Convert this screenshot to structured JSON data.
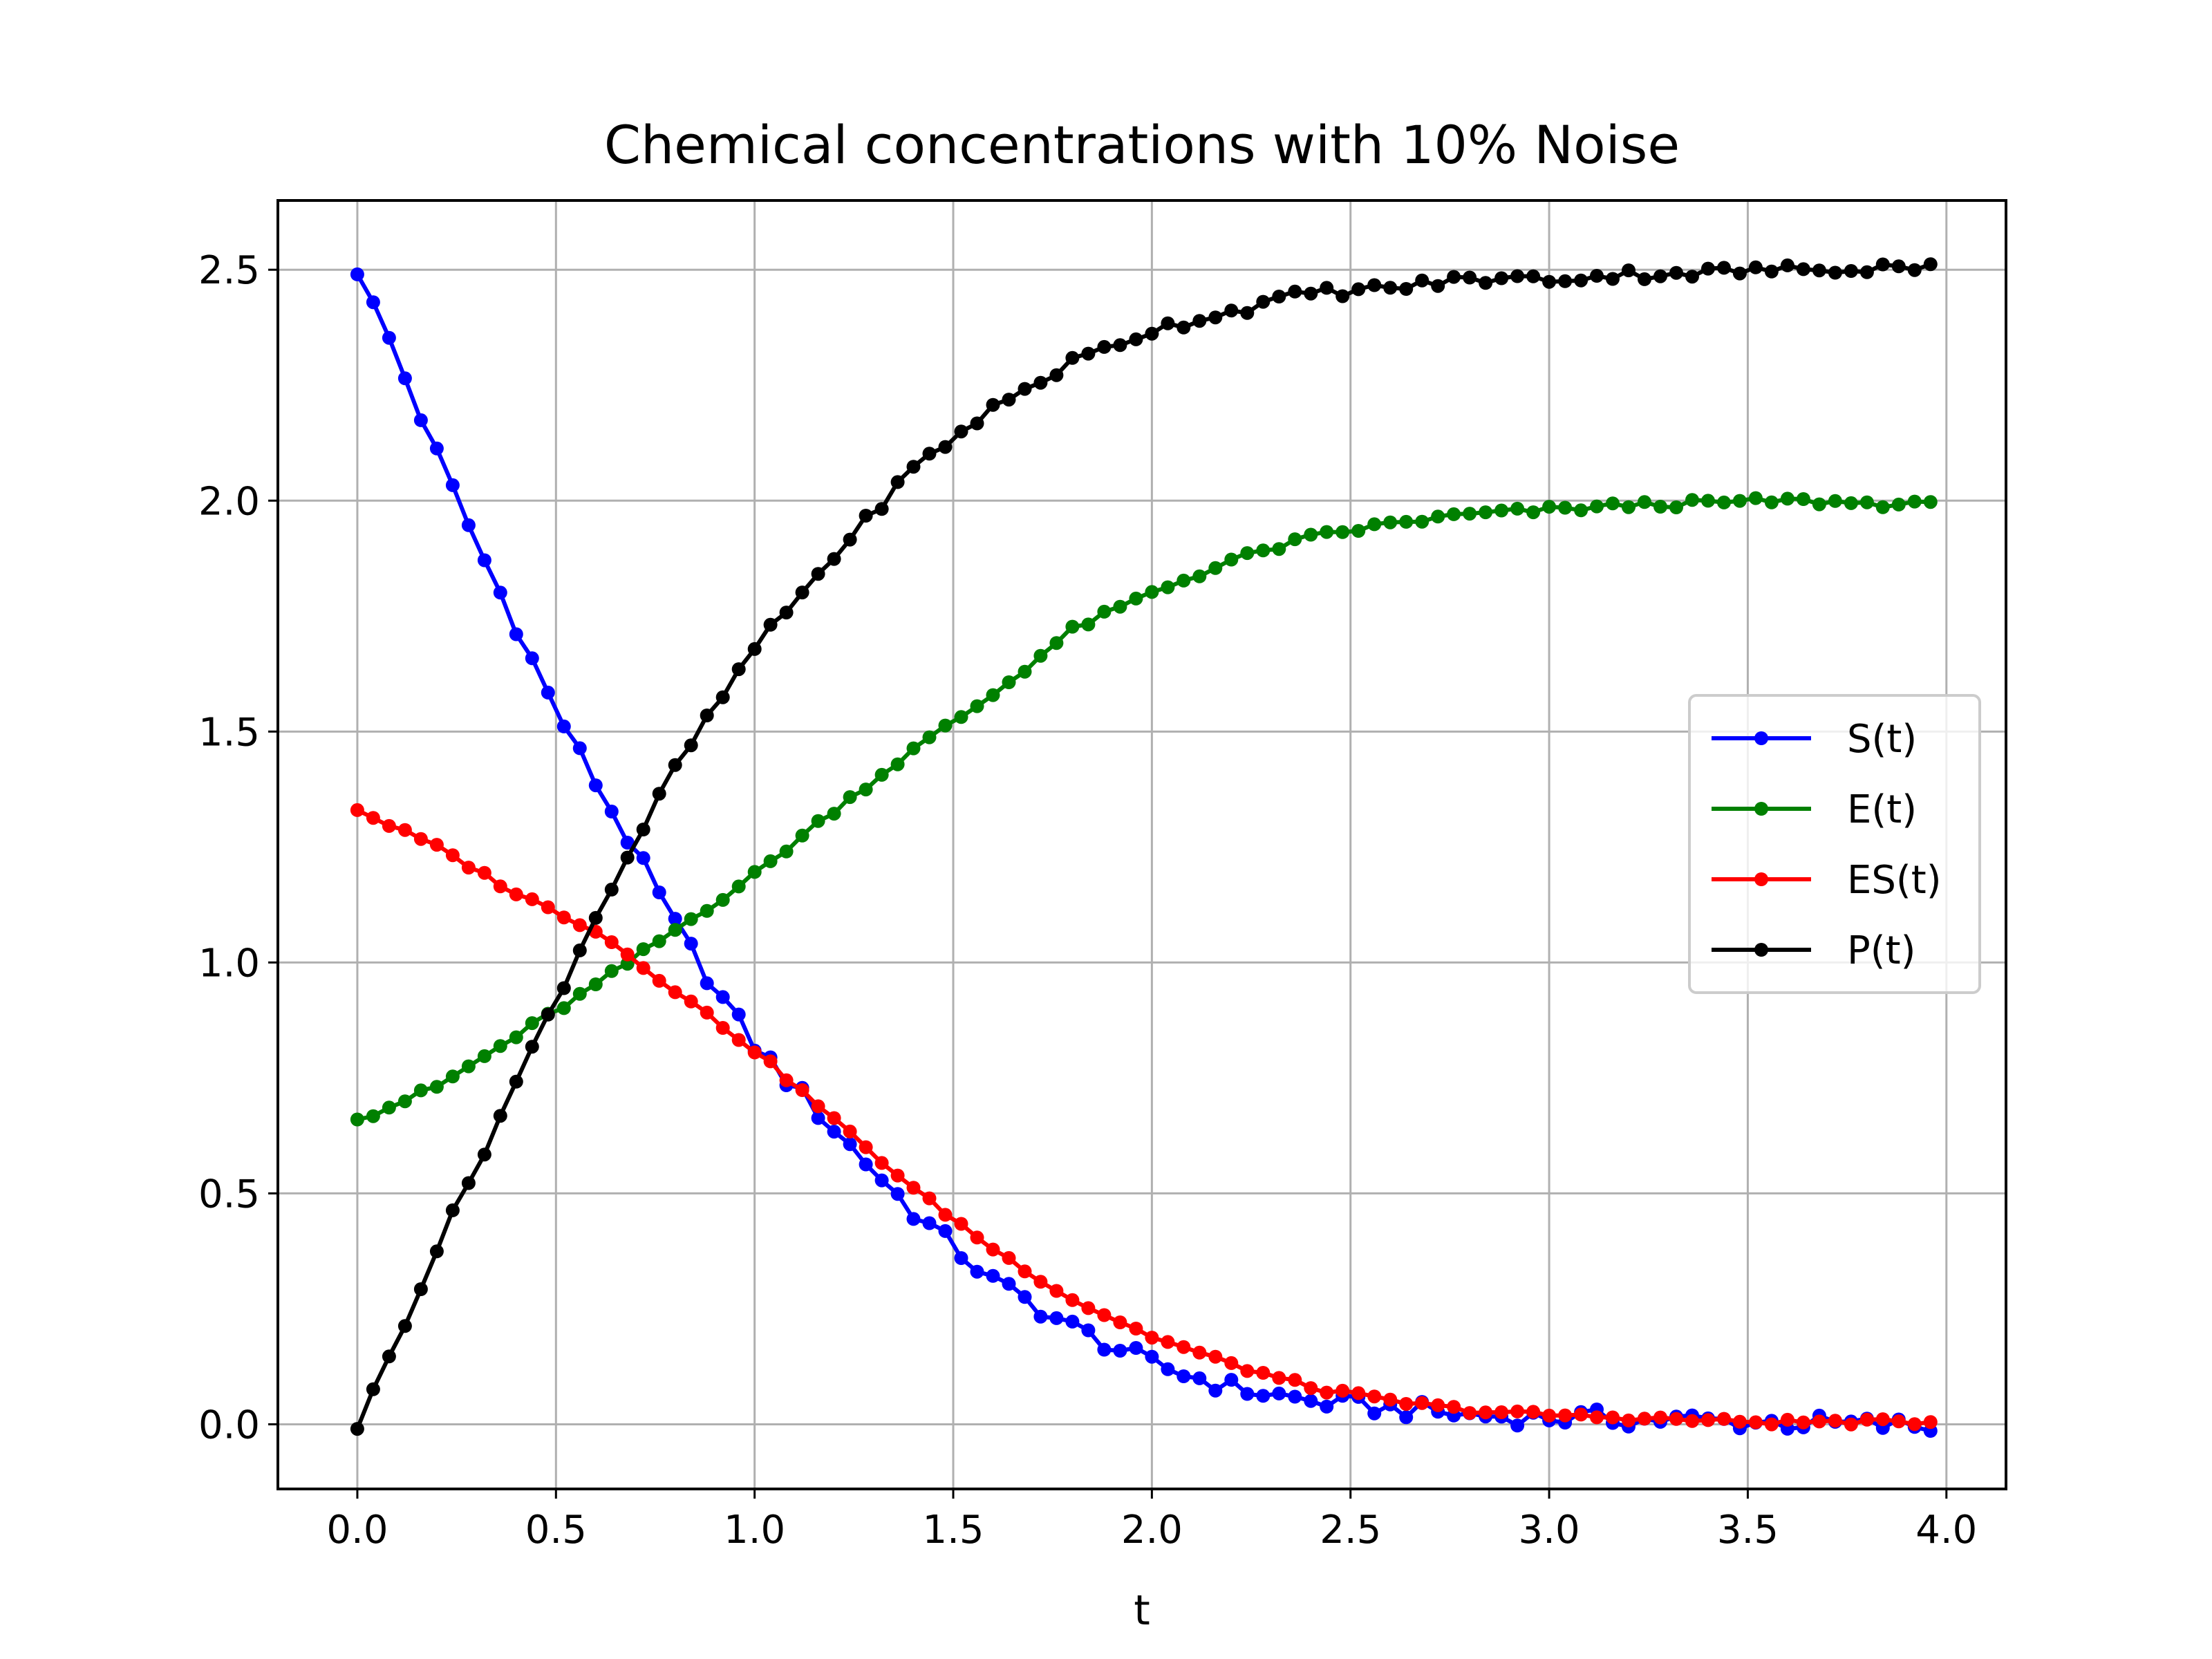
{
  "chart_data": {
    "type": "line",
    "title": "Chemical concentrations with 10% Noise",
    "xlabel": "t",
    "ylabel": "",
    "xlim": [
      -0.2,
      4.15
    ],
    "ylim": [
      -0.14,
      2.65
    ],
    "xticks": [
      0.0,
      0.5,
      1.0,
      1.5,
      2.0,
      2.5,
      3.0,
      3.5,
      4.0
    ],
    "yticks": [
      0.0,
      0.5,
      1.0,
      1.5,
      2.0,
      2.5
    ],
    "xtick_labels": [
      "0.0",
      "0.5",
      "1.0",
      "1.5",
      "2.0",
      "2.5",
      "3.0",
      "3.5",
      "4.0"
    ],
    "ytick_labels": [
      "0.0",
      "0.5",
      "1.0",
      "1.5",
      "2.0",
      "2.5"
    ],
    "grid": true,
    "legend_position": "center-right",
    "markers": true,
    "x_step": 0.04,
    "n_points": 100,
    "series": [
      {
        "name": "S(t)",
        "color": "#0000ff",
        "keypoints": [
          [
            0,
            2.49
          ],
          [
            0.08,
            2.35
          ],
          [
            0.2,
            2.1
          ],
          [
            0.32,
            1.87
          ],
          [
            0.4,
            1.73
          ],
          [
            0.48,
            1.58
          ],
          [
            0.56,
            1.45
          ],
          [
            0.68,
            1.27
          ],
          [
            0.8,
            1.08
          ],
          [
            0.92,
            0.92
          ],
          [
            1.0,
            0.82
          ],
          [
            1.2,
            0.64
          ],
          [
            1.4,
            0.46
          ],
          [
            1.6,
            0.31
          ],
          [
            1.8,
            0.21
          ],
          [
            2.0,
            0.13
          ],
          [
            2.2,
            0.08
          ],
          [
            2.4,
            0.05
          ],
          [
            2.6,
            0.035
          ],
          [
            2.8,
            0.02
          ],
          [
            3.0,
            0.015
          ],
          [
            3.4,
            0.008
          ],
          [
            3.96,
            -0.005
          ]
        ],
        "noise": 0.02
      },
      {
        "name": "E(t)",
        "color": "#008000",
        "keypoints": [
          [
            0,
            0.66
          ],
          [
            0.2,
            0.73
          ],
          [
            0.4,
            0.84
          ],
          [
            0.6,
            0.95
          ],
          [
            0.8,
            1.07
          ],
          [
            1.0,
            1.19
          ],
          [
            1.2,
            1.33
          ],
          [
            1.4,
            1.46
          ],
          [
            1.6,
            1.58
          ],
          [
            1.8,
            1.72
          ],
          [
            2.0,
            1.8
          ],
          [
            2.2,
            1.87
          ],
          [
            2.4,
            1.92
          ],
          [
            2.6,
            1.95
          ],
          [
            2.8,
            1.97
          ],
          [
            3.0,
            1.98
          ],
          [
            3.2,
            1.99
          ],
          [
            3.6,
            2.0
          ],
          [
            3.96,
            1.99
          ]
        ],
        "noise": 0.008
      },
      {
        "name": "ES(t)",
        "color": "#ff0000",
        "keypoints": [
          [
            0,
            1.33
          ],
          [
            0.2,
            1.25
          ],
          [
            0.4,
            1.15
          ],
          [
            0.6,
            1.07
          ],
          [
            0.8,
            0.94
          ],
          [
            1.0,
            0.81
          ],
          [
            1.2,
            0.66
          ],
          [
            1.4,
            0.51
          ],
          [
            1.6,
            0.38
          ],
          [
            1.8,
            0.27
          ],
          [
            2.0,
            0.19
          ],
          [
            2.2,
            0.13
          ],
          [
            2.4,
            0.08
          ],
          [
            2.6,
            0.05
          ],
          [
            2.8,
            0.03
          ],
          [
            3.0,
            0.02
          ],
          [
            3.5,
            0.005
          ],
          [
            3.96,
            0.005
          ]
        ],
        "noise": 0.006
      },
      {
        "name": "P(t)",
        "color": "#000000",
        "keypoints": [
          [
            0,
            -0.01
          ],
          [
            0.2,
            0.38
          ],
          [
            0.4,
            0.74
          ],
          [
            0.6,
            1.1
          ],
          [
            0.8,
            1.42
          ],
          [
            1.0,
            1.68
          ],
          [
            1.2,
            1.88
          ],
          [
            1.4,
            2.07
          ],
          [
            1.6,
            2.2
          ],
          [
            1.8,
            2.3
          ],
          [
            2.0,
            2.37
          ],
          [
            2.2,
            2.41
          ],
          [
            2.4,
            2.45
          ],
          [
            2.6,
            2.46
          ],
          [
            2.8,
            2.48
          ],
          [
            3.0,
            2.48
          ],
          [
            3.2,
            2.49
          ],
          [
            3.6,
            2.5
          ],
          [
            3.96,
            2.51
          ]
        ],
        "noise": 0.012
      }
    ]
  }
}
